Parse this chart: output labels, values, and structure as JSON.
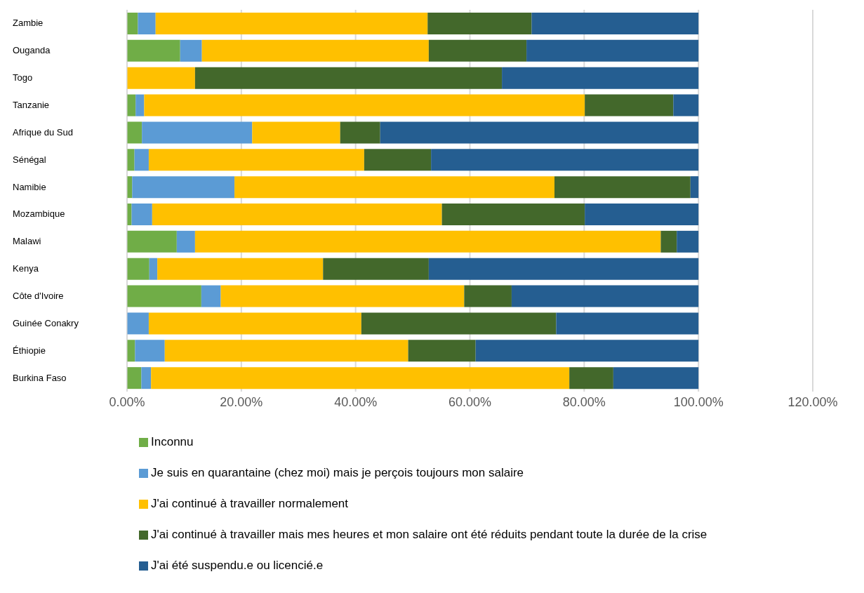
{
  "chart_data": {
    "type": "bar",
    "orientation": "horizontal",
    "stacked": true,
    "categories": [
      "Zambie",
      "Ouganda",
      "Togo",
      "Tanzanie",
      "Afrique du Sud",
      "Sénégal",
      "Namibie",
      "Mozambique",
      "Malawi",
      "Kenya",
      "Côte d'Ivoire",
      "Guinée Conakry",
      "Éthiopie",
      "Burkina Faso"
    ],
    "series": [
      {
        "name": "Inconnu",
        "color": "#70ad47",
        "values": [
          1.9,
          9.3,
          0,
          1.5,
          2.6,
          1.3,
          0.9,
          0.8,
          8.7,
          3.9,
          13.0,
          0,
          1.4,
          2.5
        ]
      },
      {
        "name": "Je suis en quarantaine (chez moi) mais je perçois toujours mon salaire",
        "color": "#5b9bd5",
        "values": [
          3.1,
          3.8,
          0,
          1.5,
          19.3,
          2.5,
          17.9,
          3.6,
          3.2,
          1.4,
          3.4,
          3.8,
          5.2,
          1.7
        ]
      },
      {
        "name": "J'ai continué à travailler normalement",
        "color": "#ffc000",
        "values": [
          47.6,
          39.7,
          11.9,
          77.1,
          15.4,
          37.7,
          56.0,
          50.7,
          81.5,
          29.0,
          42.6,
          37.2,
          42.6,
          73.2
        ]
      },
      {
        "name": "J'ai continué à travailler mais mes heures et mon salaire ont été réduits pendant toute la durée de la crise",
        "color": "#43682b",
        "values": [
          18.2,
          17.1,
          53.7,
          15.5,
          7.0,
          11.7,
          23.8,
          25.0,
          2.8,
          18.5,
          8.3,
          34.1,
          11.8,
          7.7
        ]
      },
      {
        "name": "J'ai été suspendu.e ou licencié.e",
        "color": "#255e91",
        "values": [
          29.2,
          30.1,
          34.4,
          4.4,
          55.7,
          46.8,
          1.4,
          19.9,
          3.8,
          47.2,
          32.7,
          24.9,
          39.0,
          14.9
        ]
      }
    ],
    "xlim": [
      0,
      120
    ],
    "xticks": [
      {
        "value": 0,
        "label": "0.00%"
      },
      {
        "value": 20,
        "label": "20.00%"
      },
      {
        "value": 40,
        "label": "40.00%"
      },
      {
        "value": 60,
        "label": "60.00%"
      },
      {
        "value": 80,
        "label": "80.00%"
      },
      {
        "value": 100,
        "label": "100.00%"
      },
      {
        "value": 120,
        "label": "120.00%"
      }
    ],
    "grid": "x",
    "legend": "bottom"
  }
}
